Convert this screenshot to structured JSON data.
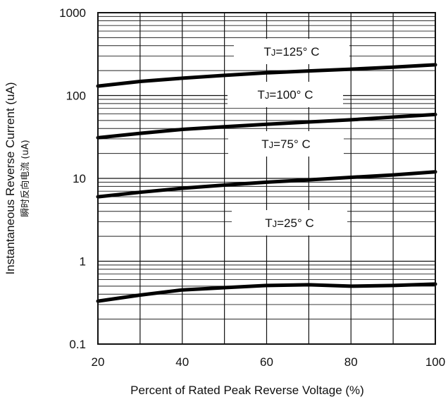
{
  "chart_data": {
    "type": "line",
    "title": "",
    "xlabel": "Percent of Rated Peak Reverse Voltage (%)",
    "ylabel": "Instantaneous Reverse Current (uA)",
    "ylabel_secondary": "瞬时反向电流 (uA)",
    "x_scale": "linear",
    "y_scale": "log",
    "xlim": [
      20,
      100
    ],
    "ylim": [
      0.1,
      1000
    ],
    "grid": true,
    "x_ticks": [
      "20",
      "40",
      "60",
      "80",
      "100"
    ],
    "y_ticks": [
      "0.1",
      "1",
      "10",
      "100",
      "1000"
    ],
    "series": [
      {
        "name": "TJ=125° C",
        "label_parts": {
          "prefix": "T",
          "sub": "J",
          "suffix": "=125° C"
        },
        "x": [
          20,
          30,
          40,
          50,
          60,
          70,
          80,
          90,
          100
        ],
        "y": [
          130,
          148,
          162,
          175,
          188,
          198,
          208,
          220,
          235
        ]
      },
      {
        "name": "TJ=100° C",
        "label_parts": {
          "prefix": "T",
          "sub": "J",
          "suffix": "=100° C"
        },
        "x": [
          20,
          30,
          40,
          50,
          60,
          70,
          80,
          90,
          100
        ],
        "y": [
          31,
          35,
          39,
          42,
          45,
          48,
          51,
          55,
          59
        ]
      },
      {
        "name": "TJ=75° C",
        "label_parts": {
          "prefix": "T",
          "sub": "J",
          "suffix": "=75° C"
        },
        "x": [
          20,
          30,
          40,
          50,
          60,
          70,
          80,
          90,
          100
        ],
        "y": [
          6.0,
          6.8,
          7.6,
          8.3,
          9.0,
          9.6,
          10.3,
          11.0,
          12.0
        ]
      },
      {
        "name": "TJ=25° C",
        "label_parts": {
          "prefix": "T",
          "sub": "J",
          "suffix": "=25° C"
        },
        "x": [
          20,
          30,
          40,
          50,
          60,
          70,
          80,
          90,
          100
        ],
        "y": [
          0.33,
          0.39,
          0.45,
          0.48,
          0.51,
          0.52,
          0.5,
          0.51,
          0.53
        ]
      }
    ]
  }
}
